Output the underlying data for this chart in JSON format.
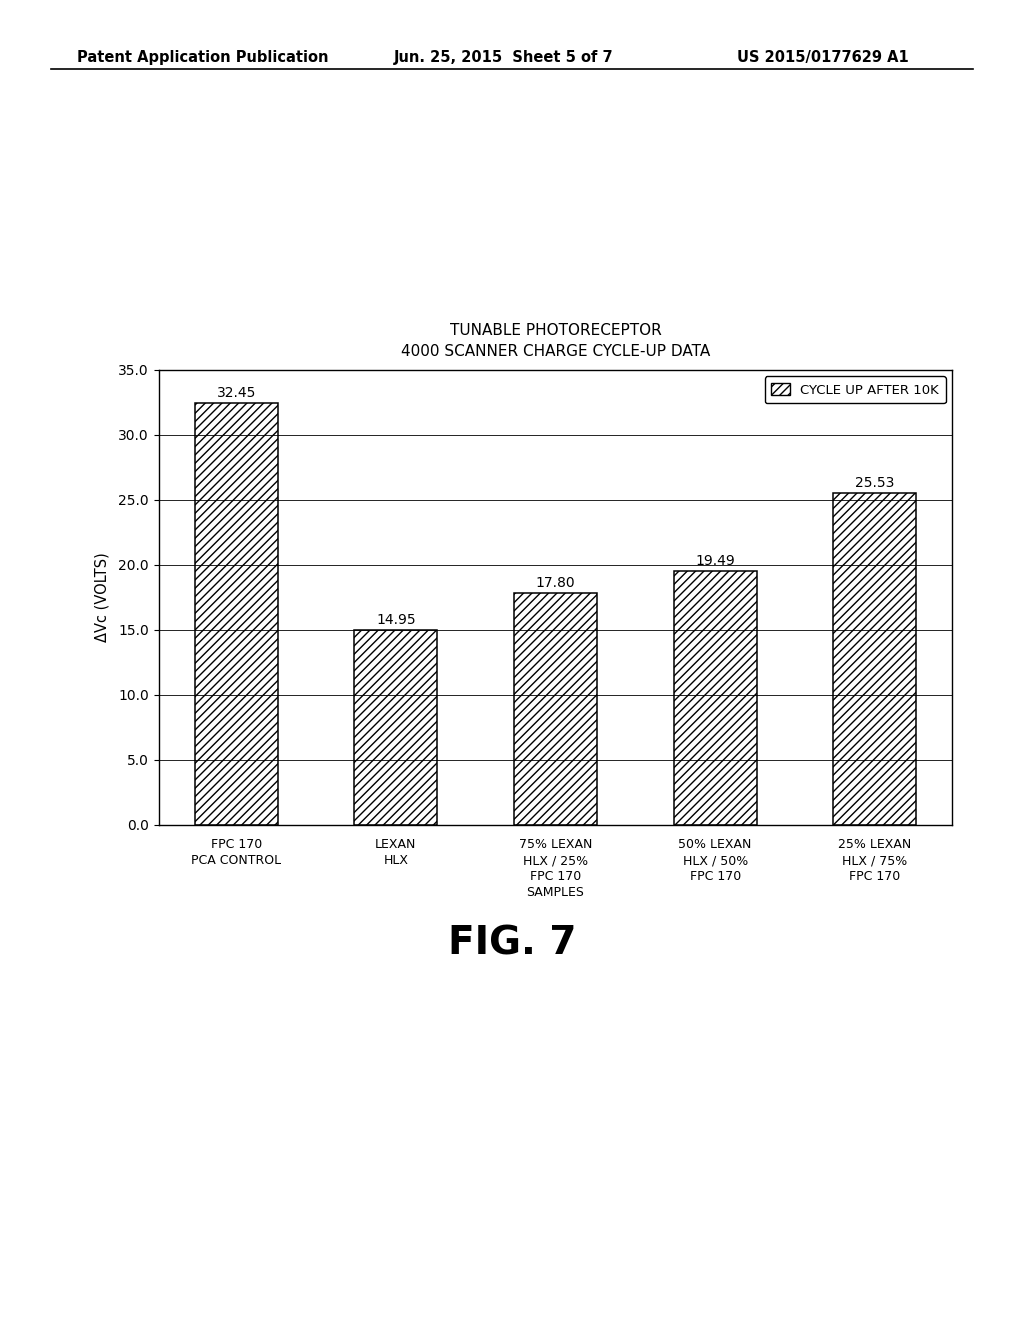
{
  "title_line1": "TUNABLE PHOTORECEPTOR",
  "title_line2": "4000 SCANNER CHARGE CYCLE-UP DATA",
  "categories": [
    "FPC 170\nPCA CONTROL",
    "LEXAN\nHLX",
    "75% LEXAN\nHLX / 25%\nFPC 170\nSAMPLES",
    "50% LEXAN\nHLX / 50%\nFPC 170",
    "25% LEXAN\nHLX / 75%\nFPC 170"
  ],
  "values": [
    32.45,
    14.95,
    17.8,
    19.49,
    25.53
  ],
  "ylabel": "ΔVc (VOLTS)",
  "ylim": [
    0.0,
    35.0
  ],
  "yticks": [
    0.0,
    5.0,
    10.0,
    15.0,
    20.0,
    25.0,
    30.0,
    35.0
  ],
  "legend_label": "CYCLE UP AFTER 10K",
  "fig_label": "FIG. 7",
  "header_left": "Patent Application Publication",
  "header_center": "Jun. 25, 2015  Sheet 5 of 7",
  "header_right": "US 2015/0177629 A1",
  "bar_color": "#ffffff",
  "bar_edgecolor": "#000000",
  "hatch_pattern": "////",
  "background_color": "#ffffff"
}
